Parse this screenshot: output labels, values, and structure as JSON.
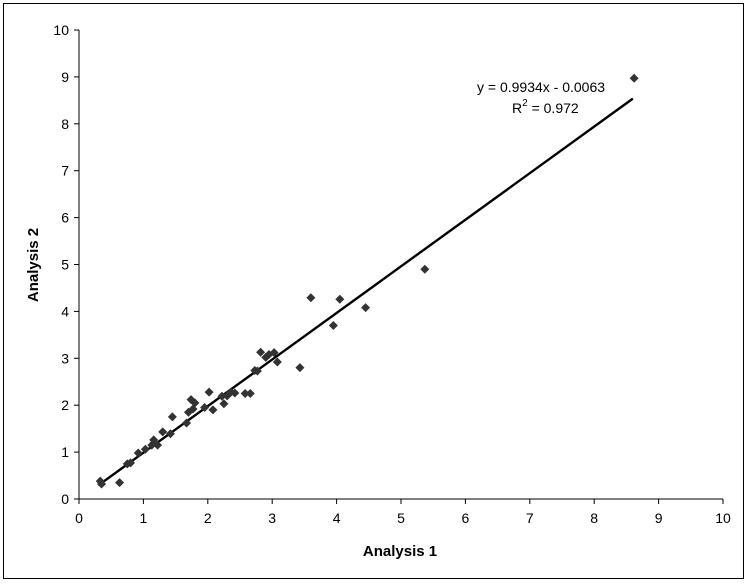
{
  "chart_data": {
    "type": "scatter",
    "title": "",
    "xlabel": "Analysis 1",
    "ylabel": "Analysis 2",
    "xlim": [
      0,
      10
    ],
    "ylim": [
      0,
      10
    ],
    "xticks": [
      "0",
      "1",
      "2",
      "3",
      "4",
      "5",
      "6",
      "7",
      "8",
      "9",
      "10"
    ],
    "yticks": [
      "0",
      "1",
      "2",
      "3",
      "4",
      "5",
      "6",
      "7",
      "8",
      "9",
      "10"
    ],
    "grid": false,
    "legend": "none",
    "marker_color": "#333333",
    "trend_color": "#000000",
    "equation": "y = 0.9934x - 0.0063",
    "r2_label": "R",
    "r2_sup": "2",
    "r2_value": " = 0.972",
    "trendline": {
      "slope": 0.9934,
      "intercept": -0.0063,
      "x_start": 0.3,
      "x_end": 8.6
    },
    "points": [
      [
        0.33,
        0.38
      ],
      [
        0.35,
        0.32
      ],
      [
        0.63,
        0.35
      ],
      [
        0.75,
        0.75
      ],
      [
        0.8,
        0.77
      ],
      [
        0.92,
        0.98
      ],
      [
        1.03,
        1.06
      ],
      [
        1.13,
        1.15
      ],
      [
        1.16,
        1.26
      ],
      [
        1.22,
        1.15
      ],
      [
        1.3,
        1.43
      ],
      [
        1.42,
        1.39
      ],
      [
        1.45,
        1.75
      ],
      [
        1.67,
        1.62
      ],
      [
        1.7,
        1.85
      ],
      [
        1.74,
        2.12
      ],
      [
        1.77,
        1.92
      ],
      [
        1.8,
        2.05
      ],
      [
        1.95,
        1.95
      ],
      [
        2.02,
        2.28
      ],
      [
        2.08,
        1.9
      ],
      [
        2.22,
        2.19
      ],
      [
        2.25,
        2.03
      ],
      [
        2.3,
        2.2
      ],
      [
        2.36,
        2.28
      ],
      [
        2.42,
        2.26
      ],
      [
        2.58,
        2.25
      ],
      [
        2.66,
        2.25
      ],
      [
        2.73,
        2.74
      ],
      [
        2.77,
        2.73
      ],
      [
        2.82,
        3.13
      ],
      [
        2.9,
        3.02
      ],
      [
        2.95,
        3.08
      ],
      [
        3.03,
        3.12
      ],
      [
        3.08,
        2.92
      ],
      [
        3.43,
        2.8
      ],
      [
        3.6,
        4.29
      ],
      [
        3.95,
        3.7
      ],
      [
        4.05,
        4.26
      ],
      [
        4.45,
        4.08
      ],
      [
        5.37,
        4.9
      ],
      [
        8.62,
        8.97
      ]
    ]
  }
}
